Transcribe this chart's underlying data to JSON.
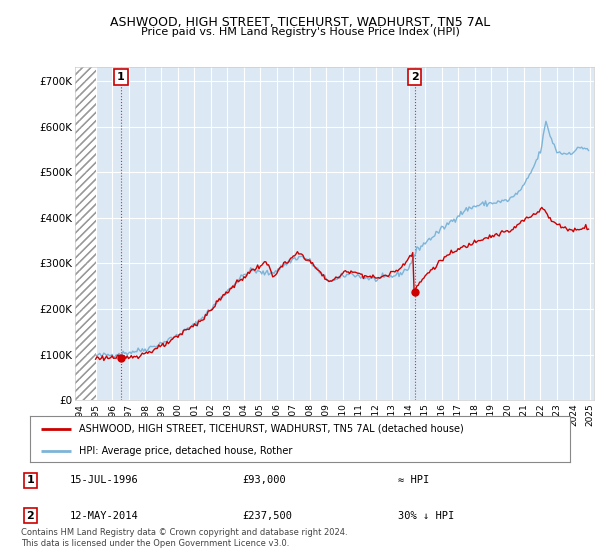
{
  "title": "ASHWOOD, HIGH STREET, TICEHURST, WADHURST, TN5 7AL",
  "subtitle": "Price paid vs. HM Land Registry's House Price Index (HPI)",
  "legend_line1": "ASHWOOD, HIGH STREET, TICEHURST, WADHURST, TN5 7AL (detached house)",
  "legend_line2": "HPI: Average price, detached house, Rother",
  "footer": "Contains HM Land Registry data © Crown copyright and database right 2024.\nThis data is licensed under the Open Government Licence v3.0.",
  "annotation1_date": "15-JUL-1996",
  "annotation1_price": "£93,000",
  "annotation1_hpi": "≈ HPI",
  "annotation2_date": "12-MAY-2014",
  "annotation2_price": "£237,500",
  "annotation2_hpi": "30% ↓ HPI",
  "sale_color": "#cc0000",
  "hpi_color": "#7db4d8",
  "sale_dot_color": "#cc0000",
  "annotation_box_color": "#cc0000",
  "background_color": "#ffffff",
  "plot_bg_color": "#dce9f5",
  "yticks": [
    0,
    100000,
    200000,
    300000,
    400000,
    500000,
    600000,
    700000
  ],
  "ytick_labels": [
    "£0",
    "£100K",
    "£200K",
    "£300K",
    "£400K",
    "£500K",
    "£600K",
    "£700K"
  ],
  "ylim": [
    0,
    730000
  ],
  "xlim_start": 1993.75,
  "xlim_end": 2025.25,
  "sale1_x": 1996.54,
  "sale1_y": 93000,
  "sale2_x": 2014.36,
  "sale2_y": 237500,
  "hatch_end": 1995.0
}
